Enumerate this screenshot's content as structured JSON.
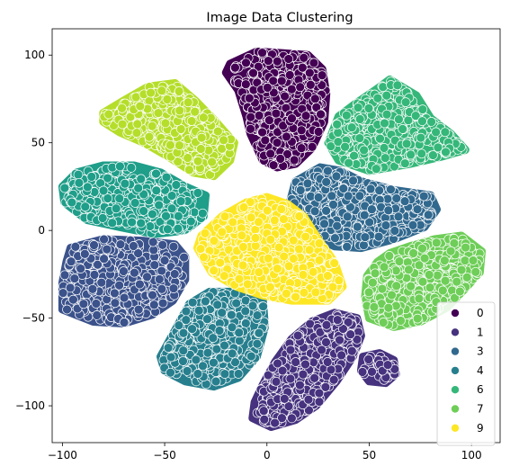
{
  "chart_data": {
    "type": "scatter",
    "title": "Image Data Clustering",
    "xlabel": "",
    "ylabel": "",
    "xlim": [
      -105,
      114
    ],
    "ylim": [
      -121,
      115
    ],
    "x_ticks": [
      -100,
      -50,
      0,
      50,
      100
    ],
    "y_ticks": [
      100,
      50,
      0,
      -50,
      -100
    ],
    "x_tick_labels": [
      "−100",
      "−50",
      "0",
      "50",
      "100"
    ],
    "y_tick_labels": [
      "100",
      "50",
      "0",
      "−50",
      "−100"
    ],
    "grid": false,
    "legend_position": "bottom-right",
    "legend": [
      {
        "label": "0",
        "color": "#440154"
      },
      {
        "label": "1",
        "color": "#46327e"
      },
      {
        "label": "3",
        "color": "#31688e"
      },
      {
        "label": "4",
        "color": "#277f8e"
      },
      {
        "label": "6",
        "color": "#35b779"
      },
      {
        "label": "7",
        "color": "#6ece58"
      },
      {
        "label": "9",
        "color": "#fde725"
      }
    ],
    "clusters": [
      {
        "cluster": "0",
        "color": "#440154",
        "approx_center": [
          8,
          70
        ],
        "polygon": [
          [
            -18,
            95
          ],
          [
            -5,
            102
          ],
          [
            8,
            101
          ],
          [
            20,
            100
          ],
          [
            27,
            92
          ],
          [
            29,
            78
          ],
          [
            28,
            62
          ],
          [
            22,
            47
          ],
          [
            14,
            38
          ],
          [
            5,
            36
          ],
          [
            -2,
            40
          ],
          [
            -8,
            55
          ],
          [
            -10,
            65
          ],
          [
            -14,
            80
          ],
          [
            -20,
            90
          ]
        ]
      },
      {
        "cluster": "2",
        "color": "#3b528b",
        "approx_center": [
          -75,
          -25
        ],
        "polygon": [
          [
            -96,
            -10
          ],
          [
            -80,
            -5
          ],
          [
            -60,
            -6
          ],
          [
            -45,
            -8
          ],
          [
            -40,
            -15
          ],
          [
            -40,
            -28
          ],
          [
            -46,
            -40
          ],
          [
            -56,
            -48
          ],
          [
            -70,
            -53
          ],
          [
            -85,
            -52
          ],
          [
            -100,
            -45
          ],
          [
            -100,
            -30
          ],
          [
            -98,
            -18
          ]
        ]
      },
      {
        "cluster": "1",
        "color": "#46327e",
        "approx_center": [
          20,
          -80
        ],
        "polygon": [
          [
            -7,
            -107
          ],
          [
            2,
            -112
          ],
          [
            14,
            -108
          ],
          [
            24,
            -100
          ],
          [
            34,
            -86
          ],
          [
            42,
            -72
          ],
          [
            46,
            -60
          ],
          [
            44,
            -50
          ],
          [
            33,
            -47
          ],
          [
            22,
            -52
          ],
          [
            12,
            -62
          ],
          [
            4,
            -75
          ],
          [
            -2,
            -88
          ],
          [
            -6,
            -98
          ]
        ]
      },
      {
        "cluster": "3",
        "color": "#31688e",
        "approx_center": [
          42,
          17
        ],
        "polygon": [
          [
            14,
            28
          ],
          [
            26,
            36
          ],
          [
            36,
            34
          ],
          [
            46,
            28
          ],
          [
            62,
            23
          ],
          [
            80,
            20
          ],
          [
            83,
            12
          ],
          [
            77,
            2
          ],
          [
            62,
            -5
          ],
          [
            46,
            -10
          ],
          [
            33,
            -9
          ],
          [
            22,
            -3
          ],
          [
            14,
            6
          ],
          [
            11,
            15
          ]
        ]
      },
      {
        "cluster": "4",
        "color": "#277f8e",
        "approx_center": [
          -30,
          -62
        ],
        "polygon": [
          [
            -52,
            -72
          ],
          [
            -44,
            -55
          ],
          [
            -38,
            -42
          ],
          [
            -28,
            -35
          ],
          [
            -15,
            -35
          ],
          [
            -2,
            -40
          ],
          [
            -1,
            -55
          ],
          [
            -5,
            -72
          ],
          [
            -14,
            -84
          ],
          [
            -26,
            -89
          ],
          [
            -40,
            -86
          ],
          [
            -50,
            -80
          ]
        ]
      },
      {
        "cluster": "5",
        "color": "#1f9e89",
        "approx_center": [
          -72,
          22
        ],
        "polygon": [
          [
            -100,
            25
          ],
          [
            -93,
            33
          ],
          [
            -80,
            37
          ],
          [
            -65,
            37
          ],
          [
            -52,
            33
          ],
          [
            -40,
            25
          ],
          [
            -30,
            20
          ],
          [
            -31,
            8
          ],
          [
            -40,
            0
          ],
          [
            -55,
            -2
          ],
          [
            -72,
            2
          ],
          [
            -88,
            6
          ],
          [
            -99,
            16
          ]
        ]
      },
      {
        "cluster": "6",
        "color": "#35b779",
        "approx_center": [
          60,
          58
        ],
        "polygon": [
          [
            30,
            50
          ],
          [
            35,
            65
          ],
          [
            43,
            72
          ],
          [
            53,
            80
          ],
          [
            60,
            86
          ],
          [
            73,
            77
          ],
          [
            80,
            64
          ],
          [
            90,
            55
          ],
          [
            97,
            46
          ],
          [
            85,
            42
          ],
          [
            70,
            38
          ],
          [
            50,
            34
          ],
          [
            35,
            40
          ]
        ]
      },
      {
        "cluster": "7",
        "color": "#6ece58",
        "approx_center": [
          75,
          -25
        ],
        "polygon": [
          [
            49,
            -26
          ],
          [
            54,
            -18
          ],
          [
            60,
            -13
          ],
          [
            70,
            -9
          ],
          [
            82,
            -5
          ],
          [
            95,
            -3
          ],
          [
            105,
            -12
          ],
          [
            104,
            -24
          ],
          [
            97,
            -33
          ],
          [
            88,
            -44
          ],
          [
            75,
            -52
          ],
          [
            62,
            -55
          ],
          [
            50,
            -50
          ],
          [
            48,
            -38
          ]
        ]
      },
      {
        "cluster": "8",
        "color": "#b5de2b",
        "approx_center": [
          -50,
          60
        ],
        "polygon": [
          [
            -80,
            67
          ],
          [
            -70,
            74
          ],
          [
            -58,
            82
          ],
          [
            -45,
            84
          ],
          [
            -35,
            74
          ],
          [
            -25,
            62
          ],
          [
            -16,
            50
          ],
          [
            -18,
            40
          ],
          [
            -26,
            31
          ],
          [
            -36,
            33
          ],
          [
            -48,
            42
          ],
          [
            -60,
            50
          ],
          [
            -72,
            56
          ],
          [
            -80,
            62
          ]
        ]
      },
      {
        "cluster": "9",
        "color": "#fde725",
        "approx_center": [
          5,
          -15
        ],
        "polygon": [
          [
            -32,
            -3
          ],
          [
            -22,
            8
          ],
          [
            -10,
            16
          ],
          [
            0,
            19
          ],
          [
            10,
            15
          ],
          [
            18,
            8
          ],
          [
            25,
            -5
          ],
          [
            33,
            -18
          ],
          [
            37,
            -32
          ],
          [
            30,
            -40
          ],
          [
            12,
            -40
          ],
          [
            -2,
            -37
          ],
          [
            -15,
            -32
          ],
          [
            -27,
            -24
          ],
          [
            -34,
            -10
          ]
        ]
      },
      {
        "cluster": "1",
        "color": "#46327e",
        "approx_center": [
          54,
          -80
        ],
        "polygon": [
          [
            47,
            -72
          ],
          [
            55,
            -70
          ],
          [
            62,
            -74
          ],
          [
            63,
            -82
          ],
          [
            58,
            -87
          ],
          [
            50,
            -86
          ],
          [
            46,
            -80
          ]
        ]
      }
    ]
  }
}
